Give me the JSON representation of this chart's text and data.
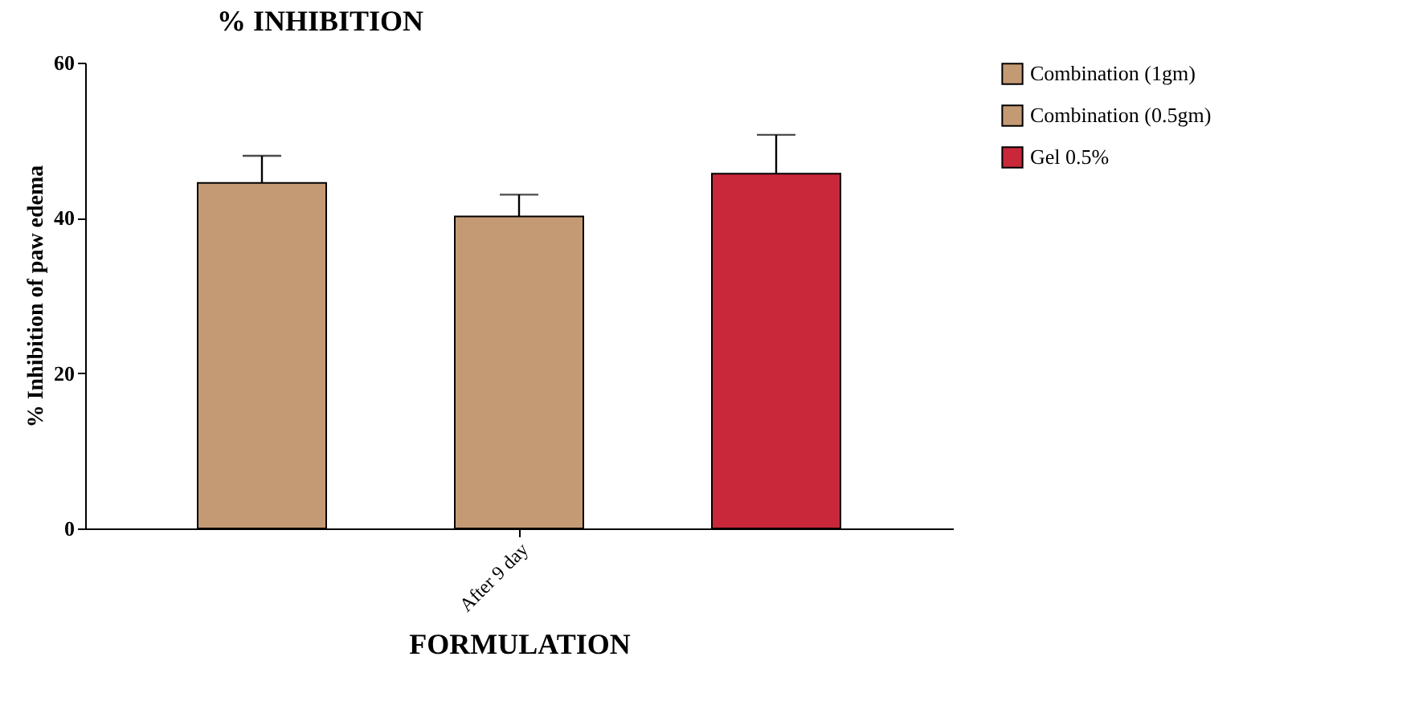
{
  "chart_data": {
    "type": "bar",
    "title": "% INHIBITION",
    "xlabel": "FORMULATION",
    "ylabel": "% Inhibition of paw edema",
    "categories": [
      "After 9 day"
    ],
    "series": [
      {
        "name": "Combination (1gm)",
        "color": "#c49a74",
        "values": [
          44.5
        ],
        "errors": [
          3.5
        ]
      },
      {
        "name": "Combination (0.5gm)",
        "color": "#c49a74",
        "values": [
          40.2
        ],
        "errors": [
          2.8
        ]
      },
      {
        "name": "Gel 0.5%",
        "color": "#c8283a",
        "values": [
          45.7
        ],
        "errors": [
          5
        ]
      }
    ],
    "ylim": [
      0,
      60
    ],
    "yticks": [
      0,
      20,
      40,
      60
    ],
    "grid": false,
    "legend": "right"
  }
}
